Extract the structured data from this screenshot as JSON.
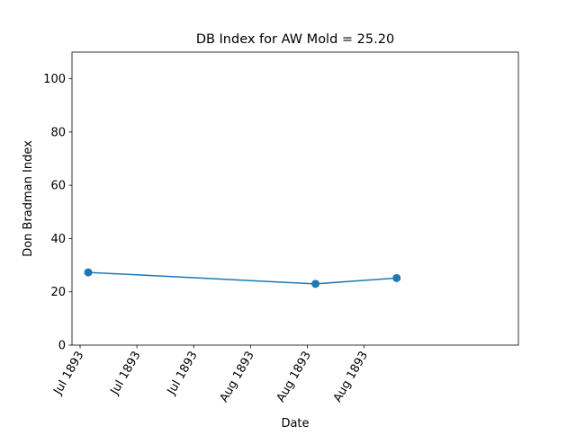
{
  "chart_data": {
    "type": "line",
    "title": "DB Index for AW Mold = 25.20",
    "xlabel": "Date",
    "ylabel": "Don Bradman Index",
    "ylim": [
      0,
      110
    ],
    "yticks": [
      0,
      20,
      40,
      60,
      80,
      100
    ],
    "xlim": [
      "1893-07-14",
      "1893-09-07"
    ],
    "xticks": [
      {
        "date": "1893-07-15",
        "label": "Jul 1893"
      },
      {
        "date": "1893-07-22",
        "label": "Jul 1893"
      },
      {
        "date": "1893-07-29",
        "label": "Jul 1893"
      },
      {
        "date": "1893-08-05",
        "label": "Aug 1893"
      },
      {
        "date": "1893-08-12",
        "label": "Aug 1893"
      },
      {
        "date": "1893-08-19",
        "label": "Aug 1893"
      }
    ],
    "series": [
      {
        "x": [
          "1893-07-16",
          "1893-08-13",
          "1893-08-23"
        ],
        "y": [
          27.3,
          23.0,
          25.2
        ]
      }
    ],
    "grid": false,
    "line_color": "#1f77b4"
  }
}
